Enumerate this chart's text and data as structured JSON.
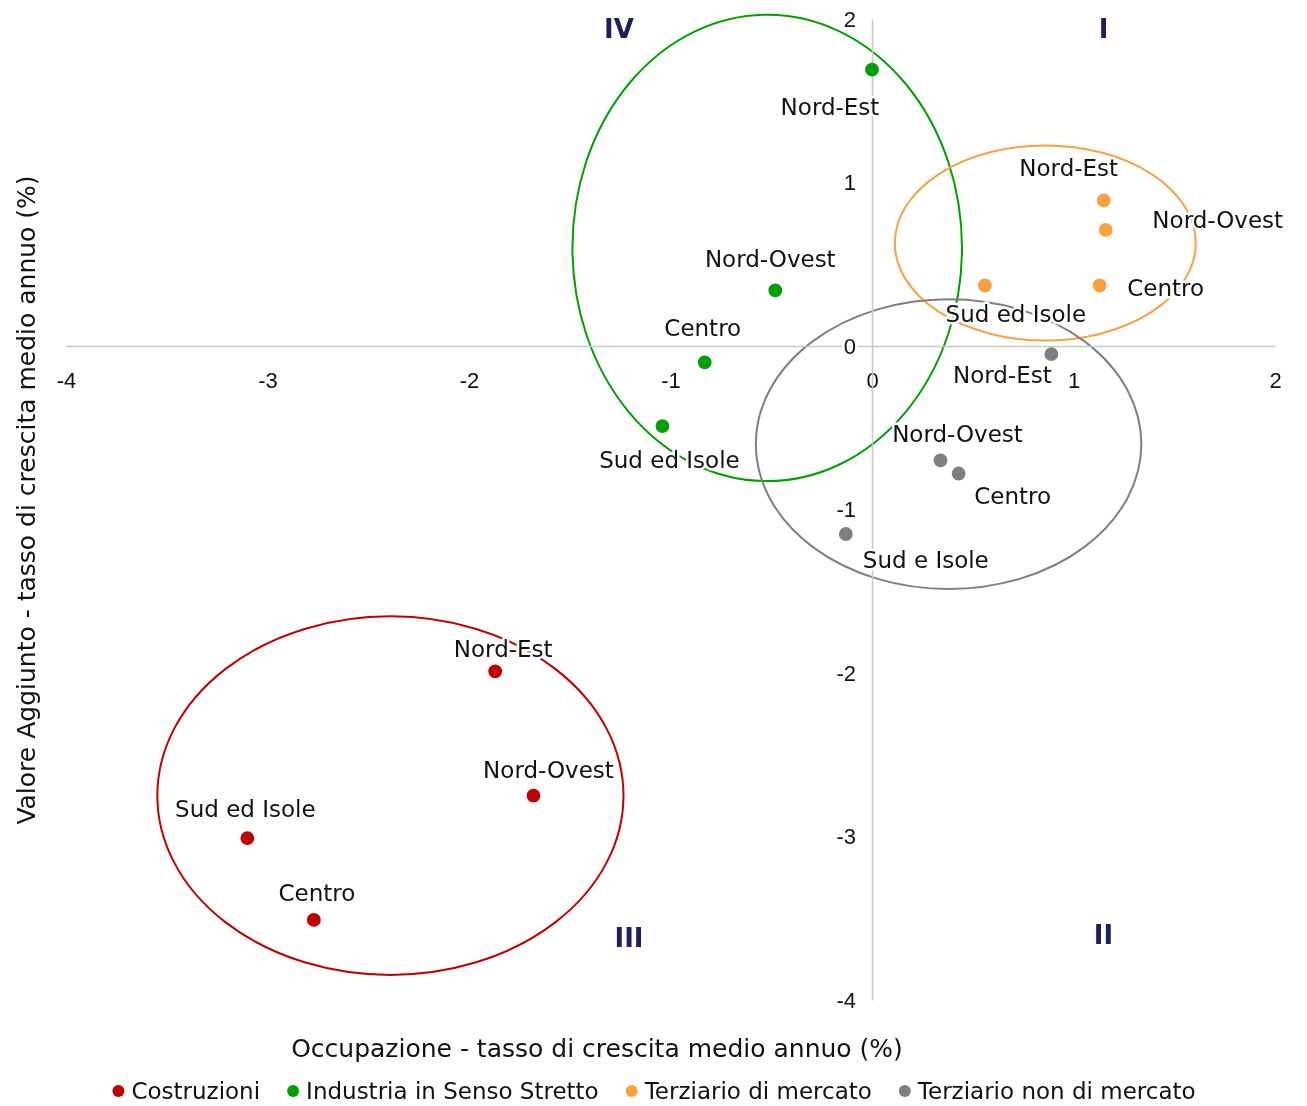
{
  "chart_data": {
    "type": "scatter",
    "xlabel": "Occupazione - tasso di crescita medio annuo (%)",
    "ylabel": "Valore Aggiunto - tasso di crescita medio annuo (%)",
    "xlim": [
      -4,
      2
    ],
    "xticks": [
      -4,
      -3,
      -2,
      -1,
      0,
      1,
      2
    ],
    "ylim": [
      -4,
      2
    ],
    "yticks": [
      -4,
      -3,
      -2,
      -1,
      0,
      1,
      2
    ],
    "grid": false,
    "legend": "bottom",
    "marker": "circle",
    "series": [
      {
        "name": "Costruzioni",
        "color": "#c00000",
        "x": [
          -1.87,
          -1.68,
          -3.1,
          -2.77
        ],
        "values": [
          -1.99,
          -2.75,
          -3.01,
          -3.51
        ]
      },
      {
        "name": "Industria in Senso Stretto",
        "color": "#00a000",
        "x": [
          0.0,
          -0.48,
          -0.83,
          -1.04
        ],
        "values": [
          1.69,
          0.34,
          -0.1,
          -0.49
        ]
      },
      {
        "name": "Terziario di mercato",
        "color": "#f9a03f",
        "x": [
          1.15,
          1.16,
          1.13,
          0.56
        ],
        "values": [
          0.89,
          0.71,
          0.37,
          0.37
        ]
      },
      {
        "name": "Terziario non di mercato",
        "color": "#7f7f7f",
        "x": [
          0.89,
          0.34,
          0.43,
          -0.13
        ],
        "values": [
          -0.05,
          -0.7,
          -0.78,
          -1.15
        ]
      }
    ],
    "annotations": [
      "I",
      "II",
      "III",
      "IV",
      {
        "text": "Nord-Est",
        "x": -1.87,
        "y": -1.99
      },
      {
        "text": "Nord-Ovest",
        "x": -1.68,
        "y": -2.75
      },
      {
        "text": "Sud ed Isole",
        "x": -3.1,
        "y": -3.01
      },
      {
        "text": "Centro",
        "x": -2.77,
        "y": -3.51
      },
      {
        "text": "Nord-Est",
        "x": 0.0,
        "y": 1.69
      },
      {
        "text": "Nord-Ovest",
        "x": -0.48,
        "y": 0.34
      },
      {
        "text": "Centro",
        "x": -0.83,
        "y": -0.1
      },
      {
        "text": "Sud ed Isole",
        "x": -1.04,
        "y": -0.49
      },
      {
        "text": "Nord-Est",
        "x": 1.15,
        "y": 0.89
      },
      {
        "text": "Nord-Ovest",
        "x": 1.16,
        "y": 0.71
      },
      {
        "text": "Centro",
        "x": 1.13,
        "y": 0.37
      },
      {
        "text": "Sud ed Isole",
        "x": 0.56,
        "y": 0.37
      },
      {
        "text": "Nord-Est",
        "x": 0.89,
        "y": -0.05
      },
      {
        "text": "Nord-Ovest",
        "x": 0.34,
        "y": -0.7
      },
      {
        "text": "Centro",
        "x": 0.43,
        "y": -0.78
      },
      {
        "text": "Sud e Isole",
        "x": -0.13,
        "y": -1.15
      }
    ]
  }
}
